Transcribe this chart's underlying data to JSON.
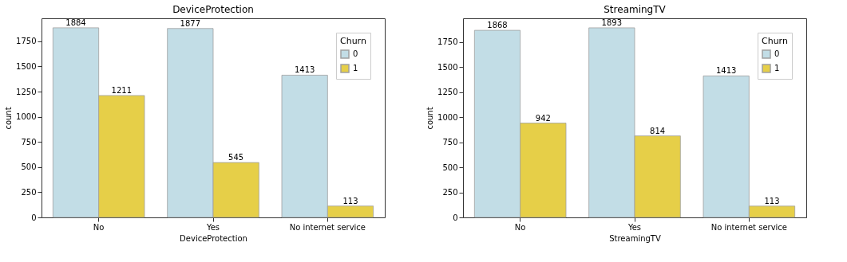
{
  "chart_data": [
    {
      "type": "bar",
      "title": "DeviceProtection",
      "xlabel": "DeviceProtection",
      "ylabel": "count",
      "legend_title": "Churn",
      "legend": "top right",
      "grid": false,
      "data_labels": true,
      "categories": [
        "No",
        "Yes",
        "No internet service"
      ],
      "series": [
        {
          "name": "0",
          "color": "#c2dde6",
          "values": [
            1884,
            1877,
            1413
          ]
        },
        {
          "name": "1",
          "color": "#e6cf48",
          "values": [
            1211,
            545,
            113
          ]
        }
      ],
      "ylim": [
        0,
        1978
      ],
      "yticks": [
        0,
        250,
        500,
        750,
        1000,
        1250,
        1500,
        1750
      ]
    },
    {
      "type": "bar",
      "title": "StreamingTV",
      "xlabel": "StreamingTV",
      "ylabel": "count",
      "legend_title": "Churn",
      "legend": "top right",
      "grid": false,
      "data_labels": true,
      "categories": [
        "No",
        "Yes",
        "No internet service"
      ],
      "series": [
        {
          "name": "0",
          "color": "#c2dde6",
          "values": [
            1868,
            1893,
            1413
          ]
        },
        {
          "name": "1",
          "color": "#e6cf48",
          "values": [
            942,
            814,
            113
          ]
        }
      ],
      "ylim": [
        0,
        1988
      ],
      "yticks": [
        0,
        250,
        500,
        750,
        1000,
        1250,
        1500,
        1750
      ]
    }
  ]
}
